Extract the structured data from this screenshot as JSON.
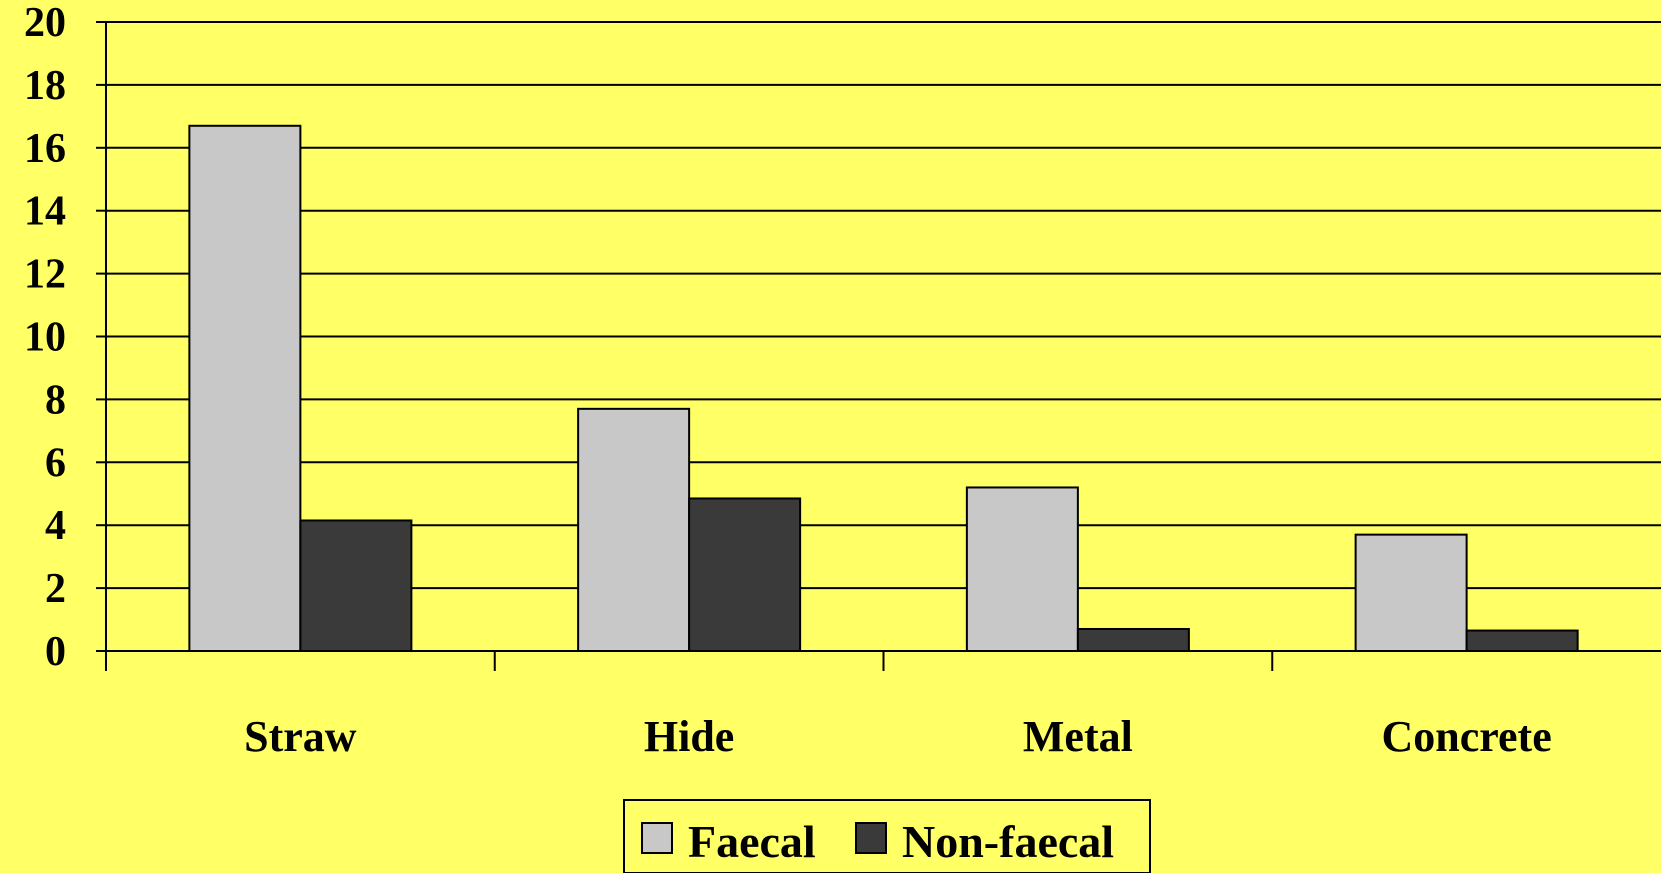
{
  "chart_data": {
    "type": "bar",
    "categories": [
      "Straw",
      "Hide",
      "Metal",
      "Concrete"
    ],
    "series": [
      {
        "name": "Faecal",
        "values": [
          16.7,
          7.7,
          5.2,
          3.7
        ],
        "color": "#C8C8C8"
      },
      {
        "name": "Non-faecal",
        "values": [
          4.15,
          4.85,
          0.7,
          0.65
        ],
        "color": "#3A3A3A"
      }
    ],
    "ylim": [
      0,
      20
    ],
    "yticks": [
      "0",
      "2",
      "4",
      "6",
      "8",
      "10",
      "12",
      "14",
      "16",
      "18",
      "20"
    ],
    "grid": true,
    "legend_position": "bottom",
    "background_color": "#FFFF66",
    "title": "",
    "xlabel": "",
    "ylabel": ""
  }
}
